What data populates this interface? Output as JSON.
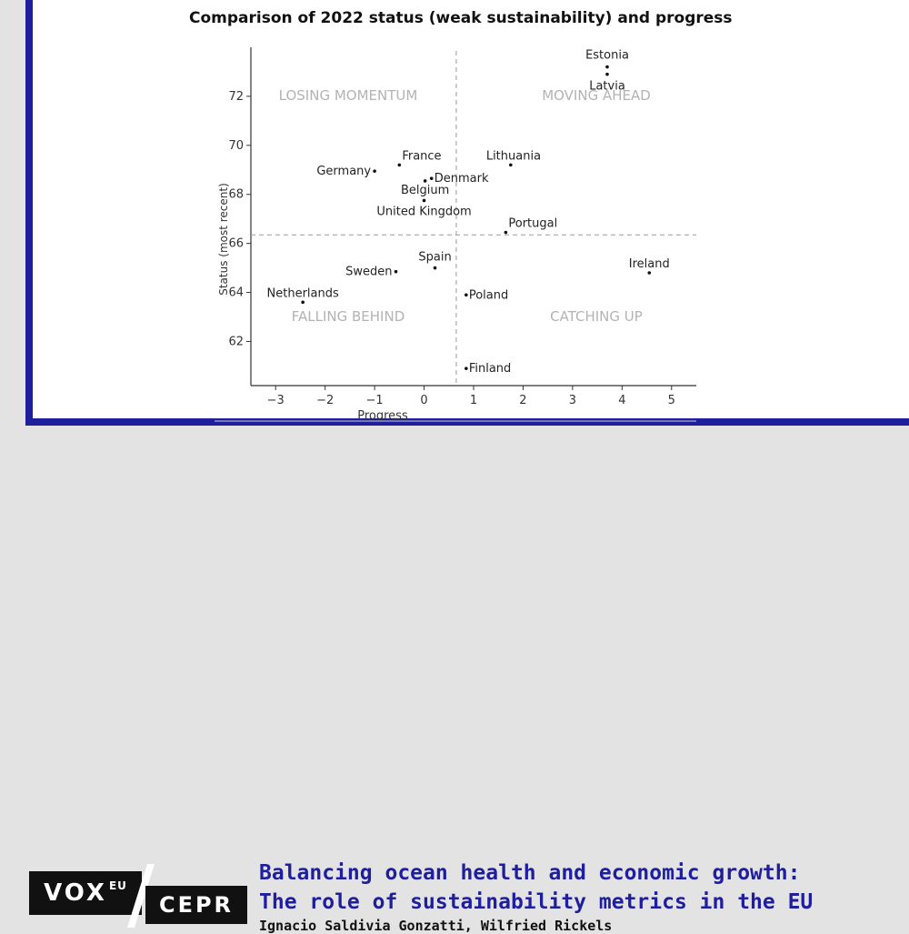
{
  "chart_data": {
    "type": "scatter",
    "title": "Comparison of 2022 status (weak sustainability) and progress",
    "xlabel": "Progress",
    "ylabel": "Status (most recent)",
    "xlim": [
      -3.5,
      5.5
    ],
    "ylim": [
      60.2,
      74.0
    ],
    "xticks": [
      -3,
      -2,
      -1,
      0,
      1,
      2,
      3,
      4,
      5
    ],
    "xtick_labels": [
      "−3",
      "−2",
      "−1",
      "0",
      "1",
      "2",
      "3",
      "4",
      "5"
    ],
    "yticks": [
      62,
      64,
      66,
      68,
      70,
      72
    ],
    "ytick_labels": [
      "62",
      "64",
      "66",
      "68",
      "70",
      "72"
    ],
    "vline": 0.65,
    "hline": 66.35,
    "quadrant_labels": {
      "top_left": "LOSING MOMENTUM",
      "top_right": "MOVING AHEAD",
      "bottom_left": "FALLING BEHIND",
      "bottom_right": "CATCHING UP"
    },
    "points": [
      {
        "label": "Estonia",
        "x": 3.7,
        "y": 73.2
      },
      {
        "label": "Latvia",
        "x": 3.7,
        "y": 72.9
      },
      {
        "label": "France",
        "x": -0.5,
        "y": 69.2
      },
      {
        "label": "Germany",
        "x": -1.0,
        "y": 68.95
      },
      {
        "label": "Lithuania",
        "x": 1.75,
        "y": 69.2
      },
      {
        "label": "Denmark",
        "x": 0.15,
        "y": 68.65
      },
      {
        "label": "Belgium",
        "x": 0.02,
        "y": 68.55
      },
      {
        "label": "United Kingdom",
        "x": 0.0,
        "y": 67.75
      },
      {
        "label": "Portugal",
        "x": 1.65,
        "y": 66.45
      },
      {
        "label": "Spain",
        "x": 0.22,
        "y": 65.0
      },
      {
        "label": "Sweden",
        "x": -0.57,
        "y": 64.85
      },
      {
        "label": "Ireland",
        "x": 4.55,
        "y": 64.8
      },
      {
        "label": "Netherlands",
        "x": -2.45,
        "y": 63.6
      },
      {
        "label": "Poland",
        "x": 0.85,
        "y": 63.9
      },
      {
        "label": "Finland",
        "x": 0.85,
        "y": 60.9
      }
    ]
  },
  "footer": {
    "logo_vox": "VOX",
    "logo_eu": "EU",
    "logo_cepr": "CEPR",
    "headline_line1": "Balancing ocean health and economic growth:",
    "headline_line2": "The role of sustainability metrics in the EU",
    "authors": "Ignacio Saldivia Gonzatti, Wilfried Rickels"
  },
  "colors": {
    "accent": "#1f1f9e",
    "quadrant_text": "#b3b3b3",
    "axis": "#333333"
  }
}
